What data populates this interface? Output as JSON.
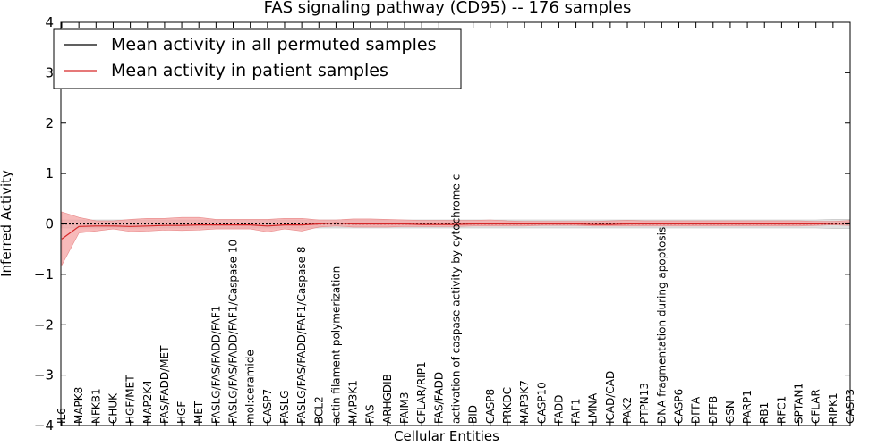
{
  "chart_data": {
    "type": "line",
    "title": "FAS signaling pathway (CD95) -- 176 samples",
    "xlabel": "Cellular Entities",
    "ylabel": "Inferred Activity",
    "ylim": [
      -4,
      4
    ],
    "yticks": [
      -4,
      -3,
      -2,
      -1,
      0,
      1,
      2,
      3,
      4
    ],
    "ytick_labels": [
      "−4",
      "−3",
      "−2",
      "−1",
      "0",
      "1",
      "2",
      "3",
      "4"
    ],
    "legend": {
      "position": "top-left"
    },
    "colors": {
      "patient": "#d62728",
      "patient_band": "#f4a3a3",
      "permuted": "#000000",
      "permuted_band": "#d9d9d9"
    },
    "categories": [
      "IL6",
      "MAPK8",
      "NFKB1",
      "CHUK",
      "HGF/MET",
      "MAP2K4",
      "FAS/FADD/MET",
      "HGF",
      "MET",
      "FASLG/FAS/FADD/FAF1",
      "FASLG/FAS/FADD/FAF1/Caspase 10",
      "mol:ceramide",
      "CASP7",
      "FASLG",
      "FASLG/FAS/FADD/FAF1/Caspase 8",
      "BCL2",
      "actin filament polymerization",
      "MAP3K1",
      "FAS",
      "ARHGDIB",
      "FAIM3",
      "CFLAR/RIP1",
      "FAS/FADD",
      "activation of caspase activity by cytochrome c",
      "BID",
      "CASP8",
      "PRKDC",
      "MAP3K7",
      "CASP10",
      "FADD",
      "FAF1",
      "LMNA",
      "ICAD/CAD",
      "PAK2",
      "PTPN13",
      "DNA fragmentation during apoptosis",
      "CASP6",
      "DFFA",
      "DFFB",
      "GSN",
      "PARP1",
      "RB1",
      "RFC1",
      "SPTAN1",
      "CFLAR",
      "RIPK1",
      "CASP3"
    ],
    "series": [
      {
        "name": "Mean activity in all permuted samples",
        "color": "#000000",
        "values": [
          0,
          0,
          0,
          0,
          0,
          0,
          0,
          0,
          0,
          0,
          0,
          0,
          0,
          0,
          0,
          0,
          0,
          0,
          0,
          0,
          0,
          0,
          0,
          0,
          0,
          0,
          0,
          0,
          0,
          0,
          0,
          0,
          0,
          0,
          0,
          0,
          0,
          0,
          0,
          0,
          0,
          0,
          0,
          0,
          0,
          0,
          0
        ],
        "band_lower": [
          -0.08,
          -0.08,
          -0.08,
          -0.08,
          -0.08,
          -0.08,
          -0.08,
          -0.08,
          -0.08,
          -0.08,
          -0.08,
          -0.08,
          -0.08,
          -0.08,
          -0.08,
          -0.08,
          -0.08,
          -0.08,
          -0.08,
          -0.08,
          -0.08,
          -0.08,
          -0.08,
          -0.08,
          -0.08,
          -0.08,
          -0.08,
          -0.08,
          -0.08,
          -0.08,
          -0.08,
          -0.08,
          -0.08,
          -0.08,
          -0.08,
          -0.08,
          -0.08,
          -0.08,
          -0.08,
          -0.08,
          -0.08,
          -0.08,
          -0.08,
          -0.08,
          -0.08,
          -0.09,
          -0.09
        ],
        "band_upper": [
          0.08,
          0.08,
          0.08,
          0.08,
          0.08,
          0.08,
          0.08,
          0.08,
          0.08,
          0.08,
          0.08,
          0.08,
          0.08,
          0.08,
          0.08,
          0.08,
          0.08,
          0.08,
          0.08,
          0.08,
          0.08,
          0.08,
          0.08,
          0.08,
          0.08,
          0.08,
          0.08,
          0.08,
          0.08,
          0.08,
          0.08,
          0.08,
          0.08,
          0.08,
          0.08,
          0.08,
          0.08,
          0.08,
          0.08,
          0.08,
          0.08,
          0.08,
          0.08,
          0.08,
          0.08,
          0.09,
          0.09
        ]
      },
      {
        "name": "Mean activity in patient samples",
        "color": "#d62728",
        "values": [
          -0.3,
          -0.05,
          -0.04,
          -0.04,
          -0.05,
          -0.04,
          -0.03,
          -0.03,
          -0.02,
          -0.02,
          -0.02,
          -0.02,
          -0.04,
          -0.02,
          -0.02,
          0.0,
          0.02,
          0.0,
          0.0,
          0.0,
          0.0,
          -0.01,
          -0.01,
          -0.01,
          0.0,
          0.0,
          0.0,
          0.0,
          0.0,
          0.0,
          0.0,
          -0.01,
          -0.01,
          0.0,
          0.0,
          0.0,
          0.0,
          0.0,
          0.0,
          0.0,
          0.0,
          0.0,
          0.0,
          0.0,
          0.0,
          0.01,
          0.02
        ],
        "band_lower": [
          -0.82,
          -0.18,
          -0.14,
          -0.1,
          -0.15,
          -0.14,
          -0.12,
          -0.13,
          -0.12,
          -0.1,
          -0.1,
          -0.1,
          -0.16,
          -0.1,
          -0.14,
          -0.06,
          -0.04,
          -0.06,
          -0.06,
          -0.06,
          -0.05,
          -0.05,
          -0.05,
          -0.05,
          -0.04,
          -0.04,
          -0.04,
          -0.04,
          -0.03,
          -0.03,
          -0.03,
          -0.04,
          -0.04,
          -0.04,
          -0.04,
          -0.04,
          -0.04,
          -0.04,
          -0.04,
          -0.04,
          -0.04,
          -0.04,
          -0.04,
          -0.04,
          -0.03,
          -0.02,
          -0.03
        ],
        "band_upper": [
          0.24,
          0.13,
          0.06,
          0.06,
          0.09,
          0.11,
          0.11,
          0.13,
          0.13,
          0.09,
          0.09,
          0.09,
          0.09,
          0.11,
          0.11,
          0.08,
          0.08,
          0.1,
          0.1,
          0.09,
          0.08,
          0.07,
          0.07,
          0.07,
          0.07,
          0.08,
          0.06,
          0.05,
          0.05,
          0.05,
          0.05,
          0.05,
          0.06,
          0.07,
          0.06,
          0.06,
          0.06,
          0.06,
          0.06,
          0.06,
          0.06,
          0.06,
          0.06,
          0.06,
          0.05,
          0.05,
          0.07
        ]
      }
    ]
  }
}
